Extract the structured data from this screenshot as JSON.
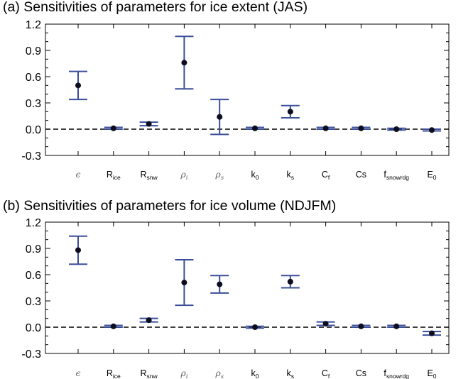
{
  "chart_data": [
    {
      "type": "scatter",
      "title": "(a) Sensitivities of parameters for ice extent (JAS)",
      "ylim": [
        -0.3,
        1.2
      ],
      "yticks": [
        "-0.3",
        "0.0",
        "0.3",
        "0.6",
        "0.9",
        "1.2"
      ],
      "reference_line_y": 0.0,
      "categories": [
        {
          "main": "ϵ",
          "sub": "",
          "greek": true
        },
        {
          "main": "R",
          "sub": "ice",
          "greek": false
        },
        {
          "main": "R",
          "sub": "snw",
          "greek": false
        },
        {
          "main": "ρ",
          "sub": "i",
          "greek": true
        },
        {
          "main": "ρ",
          "sub": "s",
          "greek": true
        },
        {
          "main": "k",
          "sub": "0",
          "greek": false
        },
        {
          "main": "k",
          "sub": "s",
          "greek": false
        },
        {
          "main": "C",
          "sub": "f",
          "greek": false
        },
        {
          "main": "Cs",
          "sub": "",
          "greek": false
        },
        {
          "main": "f",
          "sub": "snowrdg",
          "greek": false
        },
        {
          "main": "E",
          "sub": "0",
          "greek": false
        }
      ],
      "values": [
        0.5,
        0.01,
        0.06,
        0.76,
        0.14,
        0.01,
        0.2,
        0.01,
        0.01,
        0.0,
        -0.01
      ],
      "lower": [
        0.34,
        0.0,
        0.04,
        0.46,
        -0.06,
        0.0,
        0.13,
        0.0,
        0.0,
        -0.01,
        -0.02
      ],
      "upper": [
        0.66,
        0.02,
        0.08,
        1.06,
        0.34,
        0.02,
        0.27,
        0.02,
        0.02,
        0.01,
        0.0
      ],
      "point_color": "#0d0d1f",
      "errorbar_color": "#3a4f9a"
    },
    {
      "type": "scatter",
      "title": "(b) Sensitivities of parameters for ice volume (NDJFM)",
      "ylim": [
        -0.3,
        1.2
      ],
      "yticks": [
        "-0.3",
        "0.0",
        "0.3",
        "0.6",
        "0.9",
        "1.2"
      ],
      "reference_line_y": 0.0,
      "categories": [
        {
          "main": "ϵ",
          "sub": "",
          "greek": true
        },
        {
          "main": "R",
          "sub": "ice",
          "greek": false
        },
        {
          "main": "R",
          "sub": "snw",
          "greek": false
        },
        {
          "main": "ρ",
          "sub": "i",
          "greek": true
        },
        {
          "main": "ρ",
          "sub": "s",
          "greek": true
        },
        {
          "main": "k",
          "sub": "0",
          "greek": false
        },
        {
          "main": "k",
          "sub": "s",
          "greek": false
        },
        {
          "main": "C",
          "sub": "f",
          "greek": false
        },
        {
          "main": "Cs",
          "sub": "",
          "greek": false
        },
        {
          "main": "f",
          "sub": "snowrdg",
          "greek": false
        },
        {
          "main": "E",
          "sub": "0",
          "greek": false
        }
      ],
      "values": [
        0.88,
        0.01,
        0.08,
        0.51,
        0.49,
        0.0,
        0.52,
        0.04,
        0.01,
        0.01,
        -0.07
      ],
      "lower": [
        0.72,
        0.0,
        0.06,
        0.25,
        0.39,
        -0.01,
        0.45,
        0.02,
        0.0,
        0.0,
        -0.09
      ],
      "upper": [
        1.04,
        0.02,
        0.1,
        0.77,
        0.59,
        0.01,
        0.59,
        0.06,
        0.02,
        0.02,
        -0.05
      ],
      "point_color": "#0d0d1f",
      "errorbar_color": "#3a4f9a"
    }
  ]
}
